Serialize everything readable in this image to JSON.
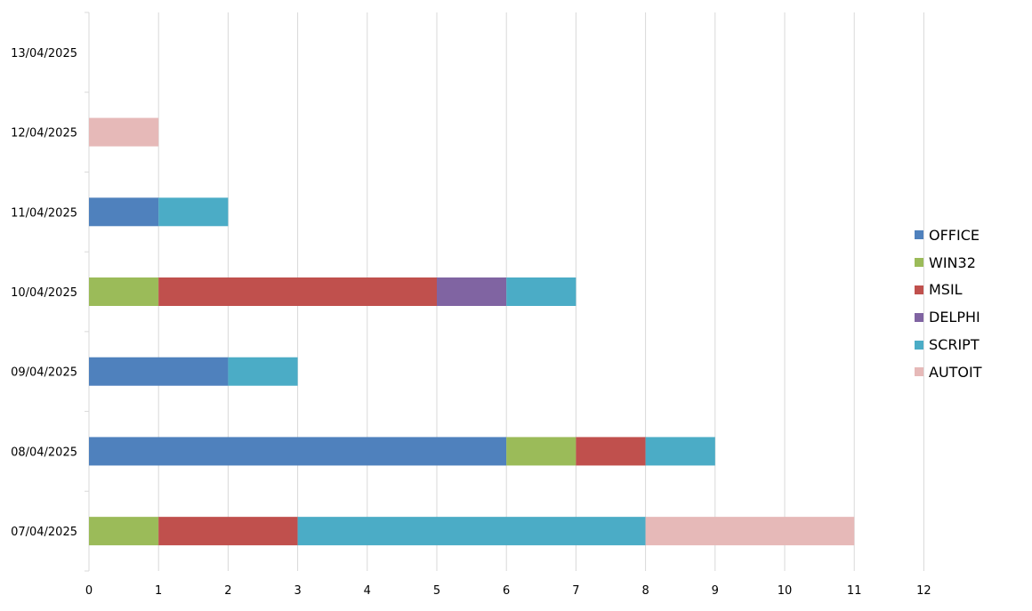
{
  "chart_data": {
    "type": "bar",
    "orientation": "horizontal",
    "stacked": true,
    "categories": [
      "07/04/2025",
      "08/04/2025",
      "09/04/2025",
      "10/04/2025",
      "11/04/2025",
      "12/04/2025",
      "13/04/2025"
    ],
    "series": [
      {
        "name": "OFFICE",
        "color": "#4F81BD",
        "values": [
          0,
          6,
          2,
          0,
          1,
          0,
          0
        ]
      },
      {
        "name": "WIN32",
        "color": "#9BBB59",
        "values": [
          1,
          1,
          0,
          1,
          0,
          0,
          0
        ]
      },
      {
        "name": "MSIL",
        "color": "#C0504D",
        "values": [
          2,
          1,
          0,
          4,
          0,
          0,
          0
        ]
      },
      {
        "name": "DELPHI",
        "color": "#8064A2",
        "values": [
          0,
          0,
          0,
          1,
          0,
          0,
          0
        ]
      },
      {
        "name": "SCRIPT",
        "color": "#4BACC6",
        "values": [
          5,
          1,
          1,
          1,
          1,
          0,
          0
        ]
      },
      {
        "name": "AUTOIT",
        "color": "#E6B9B8",
        "values": [
          3,
          0,
          0,
          0,
          0,
          1,
          0
        ]
      }
    ],
    "xlim": [
      0,
      12
    ],
    "xticks": [
      "0",
      "1",
      "2",
      "3",
      "4",
      "5",
      "6",
      "7",
      "8",
      "9",
      "10",
      "11",
      "12"
    ],
    "grid": true,
    "legend_position": "right"
  }
}
